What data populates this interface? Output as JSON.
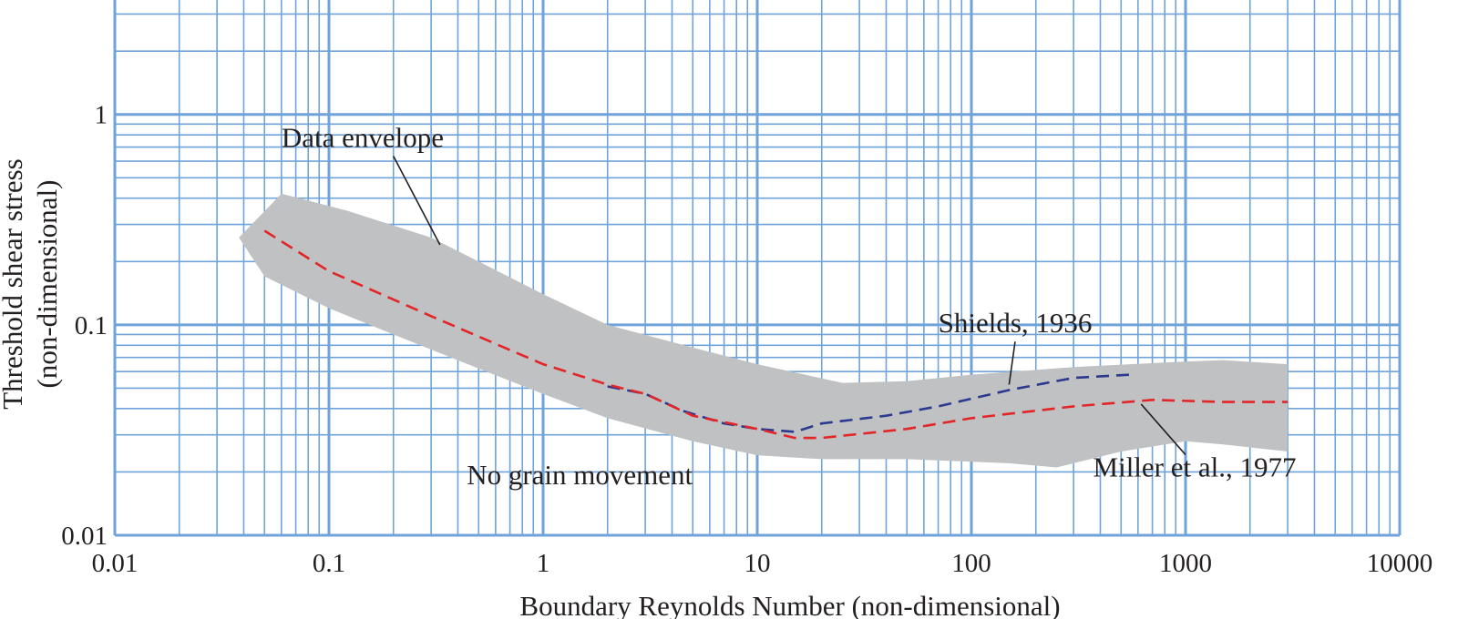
{
  "chart_data": {
    "type": "line",
    "x_scale": "log",
    "y_scale": "log",
    "xlim": [
      0.01,
      10000
    ],
    "ylim": [
      0.01,
      3.5
    ],
    "grid": true,
    "xlabel": "Boundary Reynolds Number (non-dimensional)",
    "ylabel_line1": "Threshold shear stress",
    "ylabel_line2": "(non-dimensional)",
    "x_ticks": [
      {
        "value": 0.01,
        "label": "0.01"
      },
      {
        "value": 0.1,
        "label": "0.1"
      },
      {
        "value": 1,
        "label": "1"
      },
      {
        "value": 10,
        "label": "10"
      },
      {
        "value": 100,
        "label": "100"
      },
      {
        "value": 1000,
        "label": "1000"
      },
      {
        "value": 10000,
        "label": "10000"
      }
    ],
    "y_ticks": [
      {
        "value": 0.01,
        "label": "0.01"
      },
      {
        "value": 0.1,
        "label": "0.1"
      },
      {
        "value": 1,
        "label": "1"
      }
    ],
    "envelope": {
      "name": "Data envelope",
      "color": "#c0c1c3",
      "upper": [
        [
          0.038,
          0.26
        ],
        [
          0.06,
          0.42
        ],
        [
          0.12,
          0.35
        ],
        [
          0.3,
          0.26
        ],
        [
          0.5,
          0.2
        ],
        [
          1,
          0.14
        ],
        [
          2,
          0.1
        ],
        [
          5,
          0.078
        ],
        [
          10,
          0.065
        ],
        [
          25,
          0.053
        ],
        [
          50,
          0.054
        ],
        [
          100,
          0.058
        ],
        [
          300,
          0.063
        ],
        [
          1000,
          0.067
        ],
        [
          1500,
          0.068
        ],
        [
          3000,
          0.065
        ]
      ],
      "lower": [
        [
          3000,
          0.025
        ],
        [
          1500,
          0.027
        ],
        [
          1000,
          0.028
        ],
        [
          500,
          0.025
        ],
        [
          250,
          0.021
        ],
        [
          150,
          0.022
        ],
        [
          50,
          0.023
        ],
        [
          20,
          0.023
        ],
        [
          10,
          0.024
        ],
        [
          5,
          0.028
        ],
        [
          2,
          0.036
        ],
        [
          1,
          0.047
        ],
        [
          0.5,
          0.062
        ],
        [
          0.2,
          0.09
        ],
        [
          0.1,
          0.12
        ],
        [
          0.05,
          0.17
        ],
        [
          0.038,
          0.26
        ]
      ]
    },
    "series": [
      {
        "name": "Shields, 1936",
        "color": "#2b3a8f",
        "dash": "dashed",
        "points": [
          [
            2,
            0.051
          ],
          [
            3,
            0.047
          ],
          [
            4.5,
            0.039
          ],
          [
            7,
            0.034
          ],
          [
            10,
            0.032
          ],
          [
            15,
            0.031
          ],
          [
            20,
            0.034
          ],
          [
            40,
            0.037
          ],
          [
            70,
            0.041
          ],
          [
            150,
            0.049
          ],
          [
            300,
            0.056
          ],
          [
            550,
            0.058
          ]
        ]
      },
      {
        "name": "Miller et al., 1977",
        "color": "#e42527",
        "dash": "dashed",
        "points": [
          [
            0.05,
            0.28
          ],
          [
            0.1,
            0.18
          ],
          [
            0.3,
            0.11
          ],
          [
            1,
            0.065
          ],
          [
            2,
            0.052
          ],
          [
            3,
            0.047
          ],
          [
            5,
            0.037
          ],
          [
            10,
            0.032
          ],
          [
            15,
            0.029
          ],
          [
            20,
            0.029
          ],
          [
            50,
            0.032
          ],
          [
            100,
            0.036
          ],
          [
            300,
            0.041
          ],
          [
            700,
            0.044
          ],
          [
            1500,
            0.043
          ],
          [
            3000,
            0.043
          ]
        ]
      }
    ],
    "annotations": [
      {
        "id": "envelope",
        "text": "Data envelope",
        "label_x": 0.06,
        "label_y": 0.7,
        "target_x": 0.33,
        "target_y": 0.24
      },
      {
        "id": "shields",
        "text": "Shields, 1936",
        "label_x": 70,
        "label_y": 0.092,
        "target_x": 150,
        "target_y": 0.052
      },
      {
        "id": "miller",
        "text": "Miller et al., 1977",
        "label_x": 370,
        "label_y": 0.019,
        "target_x": 620,
        "target_y": 0.042
      },
      {
        "id": "nomove",
        "text": "No grain movement",
        "label_x": 0.44,
        "label_y": 0.0175
      }
    ]
  }
}
